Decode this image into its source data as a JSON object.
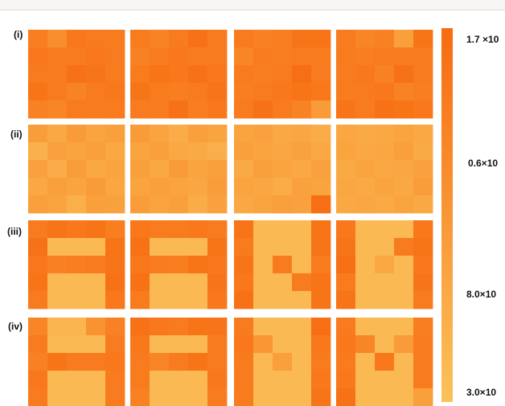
{
  "chart_data": {
    "type": "heatmap",
    "row_labels": [
      "(i)",
      "(ii)",
      "(iii)",
      "(iv)"
    ],
    "grid_size": [
      5,
      5
    ],
    "colorbar": {
      "tick_labels": [
        "1.7 ×10",
        "0.6×10",
        "8.0×10",
        "3.0×10"
      ],
      "tick_values": [
        1.0,
        0.67,
        0.33,
        0.0
      ],
      "color_low": "#fbc25a",
      "color_high": "#f76b10"
    },
    "panels": [
      [
        [
          [
            0.78,
            0.6,
            0.85,
            0.8,
            0.82
          ],
          [
            0.85,
            0.8,
            0.82,
            0.85,
            0.8
          ],
          [
            0.82,
            0.8,
            0.92,
            0.88,
            0.82
          ],
          [
            0.9,
            0.8,
            0.72,
            0.82,
            0.85
          ],
          [
            0.75,
            0.7,
            0.82,
            0.8,
            0.82
          ]
        ],
        [
          [
            0.82,
            0.72,
            0.8,
            0.92,
            0.82
          ],
          [
            0.75,
            0.8,
            0.85,
            0.8,
            0.82
          ],
          [
            0.82,
            0.9,
            0.85,
            0.92,
            0.85
          ],
          [
            0.88,
            0.82,
            0.78,
            0.82,
            0.88
          ],
          [
            0.8,
            0.82,
            0.92,
            0.78,
            0.85
          ]
        ],
        [
          [
            0.8,
            0.75,
            0.78,
            0.88,
            0.9
          ],
          [
            0.7,
            0.82,
            0.78,
            0.8,
            0.82
          ],
          [
            0.82,
            0.78,
            0.82,
            0.95,
            0.8
          ],
          [
            0.78,
            0.8,
            0.85,
            0.9,
            0.85
          ],
          [
            0.82,
            0.92,
            0.82,
            0.72,
            0.45
          ]
        ],
        [
          [
            0.8,
            0.7,
            0.75,
            0.4,
            0.9
          ],
          [
            0.82,
            0.78,
            0.8,
            0.82,
            0.82
          ],
          [
            0.8,
            0.85,
            0.75,
            0.92,
            0.8
          ],
          [
            0.82,
            0.8,
            0.85,
            0.72,
            0.78
          ],
          [
            0.9,
            0.82,
            0.92,
            0.9,
            0.85
          ]
        ]
      ],
      [
        [
          [
            0.42,
            0.3,
            0.45,
            0.35,
            0.4
          ],
          [
            0.2,
            0.38,
            0.35,
            0.4,
            0.3
          ],
          [
            0.38,
            0.25,
            0.42,
            0.3,
            0.35
          ],
          [
            0.3,
            0.4,
            0.35,
            0.45,
            0.32
          ],
          [
            0.4,
            0.35,
            0.22,
            0.4,
            0.38
          ]
        ],
        [
          [
            0.45,
            0.35,
            0.25,
            0.4,
            0.35
          ],
          [
            0.35,
            0.4,
            0.3,
            0.28,
            0.22
          ],
          [
            0.4,
            0.3,
            0.45,
            0.35,
            0.4
          ],
          [
            0.35,
            0.4,
            0.35,
            0.32,
            0.42
          ],
          [
            0.42,
            0.35,
            0.4,
            0.25,
            0.38
          ]
        ],
        [
          [
            0.35,
            0.38,
            0.3,
            0.32,
            0.25
          ],
          [
            0.4,
            0.35,
            0.32,
            0.38,
            0.3
          ],
          [
            0.28,
            0.4,
            0.35,
            0.3,
            0.38
          ],
          [
            0.35,
            0.32,
            0.25,
            0.38,
            0.35
          ],
          [
            0.3,
            0.35,
            0.4,
            0.38,
            0.95
          ]
        ],
        [
          [
            0.32,
            0.28,
            0.3,
            0.35,
            0.3
          ],
          [
            0.35,
            0.3,
            0.32,
            0.4,
            0.28
          ],
          [
            0.28,
            0.35,
            0.3,
            0.32,
            0.38
          ],
          [
            0.32,
            0.28,
            0.35,
            0.3,
            0.42
          ],
          [
            0.3,
            0.32,
            0.28,
            0.35,
            0.3
          ]
        ]
      ],
      [
        [
          [
            0.8,
            0.88,
            0.85,
            0.9,
            0.78
          ],
          [
            0.92,
            0.1,
            0.1,
            0.1,
            0.9
          ],
          [
            0.85,
            0.75,
            0.78,
            0.8,
            0.88
          ],
          [
            0.9,
            0.1,
            0.1,
            0.1,
            0.92
          ],
          [
            0.82,
            0.1,
            0.1,
            0.1,
            0.85
          ]
        ],
        [
          [
            0.85,
            0.8,
            0.82,
            0.85,
            0.8
          ],
          [
            0.92,
            0.1,
            0.1,
            0.1,
            0.9
          ],
          [
            0.85,
            0.8,
            0.78,
            0.9,
            0.85
          ],
          [
            0.92,
            0.1,
            0.1,
            0.1,
            0.88
          ],
          [
            0.82,
            0.1,
            0.1,
            0.1,
            0.85
          ]
        ],
        [
          [
            0.9,
            0.1,
            0.1,
            0.1,
            0.9
          ],
          [
            0.82,
            0.1,
            0.1,
            0.1,
            0.88
          ],
          [
            0.88,
            0.1,
            0.8,
            0.1,
            0.82
          ],
          [
            0.85,
            0.1,
            0.1,
            0.8,
            0.9
          ],
          [
            0.92,
            0.1,
            0.1,
            0.1,
            0.88
          ]
        ],
        [
          [
            0.85,
            0.1,
            0.1,
            0.1,
            0.85
          ],
          [
            0.88,
            0.1,
            0.1,
            0.8,
            0.9
          ],
          [
            0.95,
            0.1,
            0.3,
            0.1,
            0.85
          ],
          [
            0.82,
            0.1,
            0.1,
            0.1,
            0.88
          ],
          [
            0.9,
            0.1,
            0.1,
            0.1,
            0.82
          ]
        ]
      ],
      [
        [
          [
            0.7,
            0.15,
            0.15,
            0.55,
            0.75
          ],
          [
            0.8,
            0.1,
            0.1,
            0.1,
            0.8
          ],
          [
            0.75,
            0.9,
            0.8,
            0.8,
            0.85
          ],
          [
            0.85,
            0.1,
            0.1,
            0.1,
            0.8
          ],
          [
            0.8,
            0.1,
            0.1,
            0.1,
            0.8
          ]
        ],
        [
          [
            0.92,
            0.85,
            0.82,
            0.9,
            0.88
          ],
          [
            0.85,
            0.1,
            0.1,
            0.1,
            0.8
          ],
          [
            0.8,
            0.7,
            0.8,
            0.9,
            0.82
          ],
          [
            0.82,
            0.1,
            0.1,
            0.1,
            0.85
          ],
          [
            0.75,
            0.1,
            0.1,
            0.1,
            0.8
          ]
        ],
        [
          [
            0.8,
            0.1,
            0.1,
            0.1,
            0.95
          ],
          [
            0.85,
            0.5,
            0.1,
            0.1,
            0.85
          ],
          [
            0.82,
            0.1,
            0.4,
            0.1,
            0.82
          ],
          [
            0.8,
            0.1,
            0.1,
            0.1,
            0.85
          ],
          [
            0.82,
            0.1,
            0.1,
            0.1,
            0.88
          ]
        ],
        [
          [
            0.8,
            0.1,
            0.1,
            0.1,
            0.78
          ],
          [
            0.85,
            0.7,
            0.1,
            0.45,
            0.82
          ],
          [
            0.82,
            0.1,
            0.85,
            0.1,
            0.8
          ],
          [
            0.85,
            0.1,
            0.1,
            0.1,
            0.82
          ],
          [
            0.92,
            0.1,
            0.1,
            0.1,
            0.4
          ]
        ]
      ]
    ]
  }
}
